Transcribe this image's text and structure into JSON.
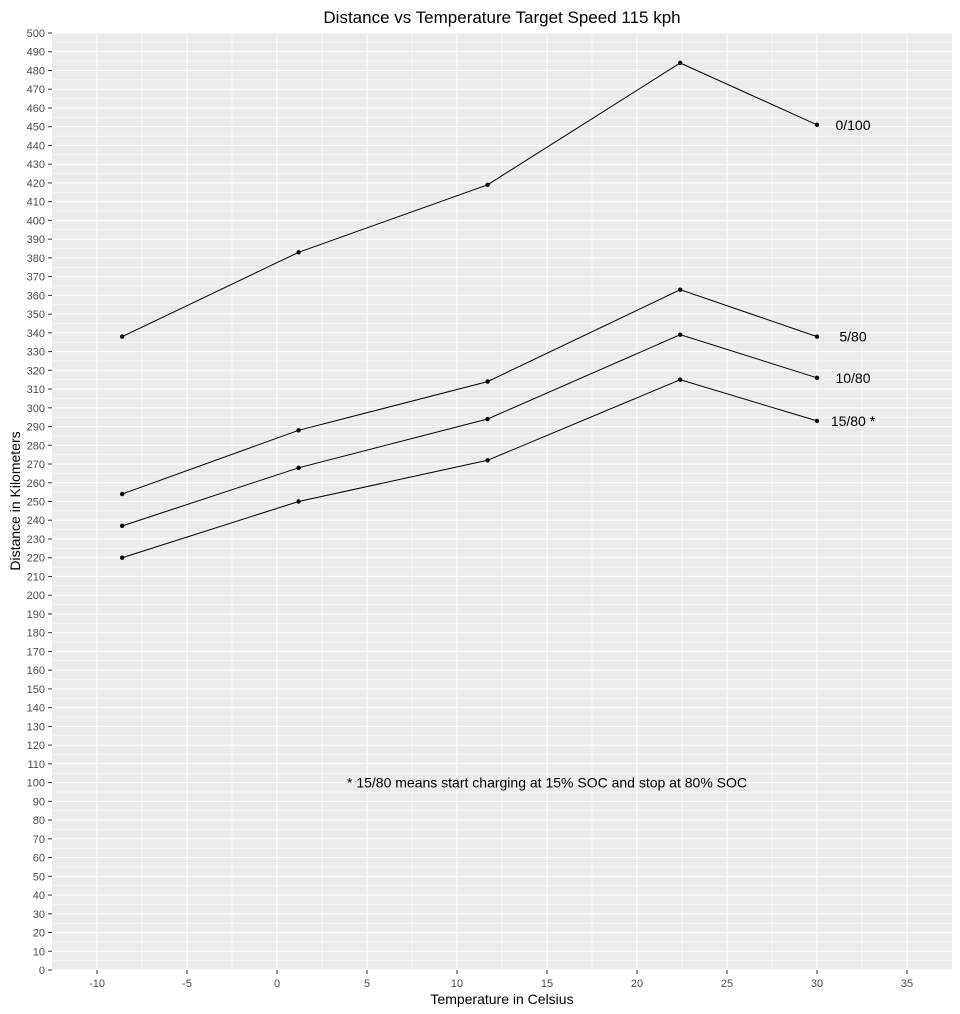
{
  "chart_data": {
    "type": "line",
    "title": "Distance vs Temperature Target Speed 115 kph",
    "xlabel": "Temperature in Celsius",
    "ylabel": "Distance in Kilometers",
    "xlim": [
      -12.5,
      37.5
    ],
    "ylim": [
      0,
      500
    ],
    "x_ticks": [
      -10,
      -5,
      0,
      5,
      10,
      15,
      20,
      25,
      30,
      35
    ],
    "y_tick_step": 10,
    "grid": true,
    "x": [
      -8.6,
      1.2,
      11.7,
      22.4,
      30
    ],
    "series": [
      {
        "name": "0/100",
        "values": [
          338,
          383,
          419,
          484,
          451
        ]
      },
      {
        "name": "5/80",
        "values": [
          254,
          288,
          314,
          363,
          338
        ]
      },
      {
        "name": "10/80",
        "values": [
          237,
          268,
          294,
          339,
          316
        ]
      },
      {
        "name": "15/80 *",
        "values": [
          220,
          250,
          272,
          315,
          293
        ]
      }
    ],
    "annotations": [
      {
        "text": "* 15/80 means start charging at 15% SOC and stop at 80% SOC",
        "x": 15,
        "y": 100
      }
    ],
    "colors": {
      "panel": "#ebebeb",
      "grid": "#ffffff",
      "line": "#000000"
    }
  }
}
